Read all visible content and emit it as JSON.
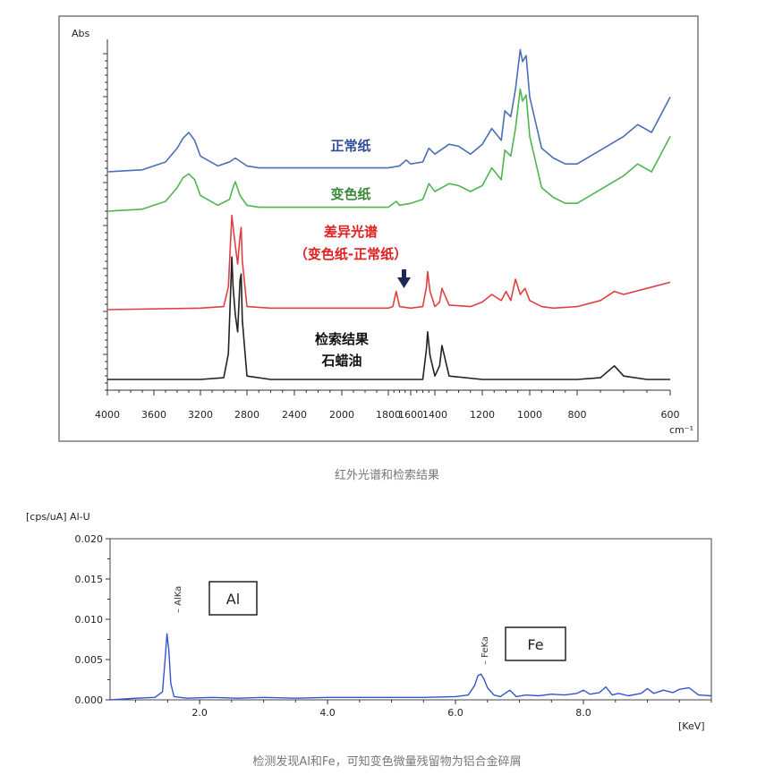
{
  "chart_data": [
    {
      "type": "line",
      "title": "",
      "ylabel": "Abs",
      "xlabel": "cm⁻¹",
      "xlim": [
        4000,
        600
      ],
      "x_ticks": [
        "4000",
        "3600",
        "3200",
        "2800",
        "2400",
        "2000",
        "1800",
        "1600",
        "1400",
        "1200",
        "1000",
        "800",
        "600"
      ],
      "x_ticks_note": "axis is non-linear: 4000-2000 compressed, 2000-600 expanded",
      "grid": false,
      "caption": "红外光谱和检索结果",
      "series": [
        {
          "name": "正常纸",
          "color": "#4a6fb5",
          "x": [
            4000,
            3700,
            3500,
            3400,
            3350,
            3300,
            3250,
            3200,
            3050,
            2950,
            2900,
            2850,
            2800,
            2700,
            2400,
            2000,
            1800,
            1700,
            1640,
            1600,
            1500,
            1450,
            1400,
            1340,
            1300,
            1250,
            1200,
            1160,
            1120,
            1105,
            1080,
            1060,
            1040,
            1030,
            1015,
            1000,
            950,
            900,
            850,
            800,
            700,
            670,
            640,
            600
          ],
          "y": [
            0.0,
            0.01,
            0.05,
            0.12,
            0.17,
            0.2,
            0.16,
            0.08,
            0.03,
            0.05,
            0.07,
            0.05,
            0.03,
            0.02,
            0.02,
            0.02,
            0.02,
            0.03,
            0.06,
            0.04,
            0.05,
            0.12,
            0.09,
            0.14,
            0.13,
            0.09,
            0.14,
            0.22,
            0.16,
            0.31,
            0.28,
            0.42,
            0.62,
            0.56,
            0.59,
            0.38,
            0.12,
            0.07,
            0.04,
            0.04,
            0.18,
            0.24,
            0.2,
            0.38
          ]
        },
        {
          "name": "变色纸",
          "color": "#4fb54f",
          "x": [
            4000,
            3700,
            3500,
            3400,
            3350,
            3300,
            3250,
            3200,
            3050,
            2950,
            2920,
            2900,
            2860,
            2800,
            2700,
            2400,
            2000,
            1800,
            1730,
            1700,
            1600,
            1500,
            1450,
            1400,
            1340,
            1300,
            1250,
            1200,
            1160,
            1120,
            1105,
            1080,
            1060,
            1040,
            1030,
            1015,
            1000,
            950,
            900,
            850,
            800,
            700,
            670,
            640,
            600
          ],
          "y": [
            0.0,
            0.01,
            0.05,
            0.12,
            0.17,
            0.19,
            0.16,
            0.08,
            0.03,
            0.06,
            0.12,
            0.15,
            0.08,
            0.03,
            0.02,
            0.02,
            0.02,
            0.02,
            0.05,
            0.03,
            0.04,
            0.06,
            0.14,
            0.1,
            0.14,
            0.13,
            0.1,
            0.13,
            0.22,
            0.16,
            0.31,
            0.28,
            0.42,
            0.62,
            0.56,
            0.59,
            0.38,
            0.12,
            0.07,
            0.04,
            0.04,
            0.18,
            0.24,
            0.2,
            0.38
          ]
        },
        {
          "name": "差异光谱（变色纸-正常纸）",
          "color": "#e04040",
          "x": [
            4000,
            3200,
            3000,
            2960,
            2930,
            2920,
            2900,
            2880,
            2860,
            2850,
            2840,
            2800,
            2600,
            2000,
            1800,
            1760,
            1730,
            1700,
            1600,
            1500,
            1470,
            1460,
            1440,
            1400,
            1380,
            1370,
            1340,
            1250,
            1200,
            1160,
            1120,
            1100,
            1080,
            1060,
            1040,
            1020,
            1000,
            950,
            900,
            800,
            750,
            720,
            700,
            650,
            600
          ],
          "y": [
            0.0,
            0.01,
            0.02,
            0.15,
            0.62,
            0.55,
            0.42,
            0.3,
            0.48,
            0.54,
            0.32,
            0.02,
            0.01,
            0.01,
            0.01,
            0.02,
            0.12,
            0.02,
            0.01,
            0.02,
            0.15,
            0.25,
            0.12,
            0.02,
            0.05,
            0.14,
            0.03,
            0.02,
            0.05,
            0.1,
            0.06,
            0.12,
            0.06,
            0.2,
            0.1,
            0.14,
            0.06,
            0.02,
            0.01,
            0.02,
            0.06,
            0.12,
            0.1,
            0.14,
            0.18
          ]
        },
        {
          "name": "检索结果 石蜡油",
          "color": "#222222",
          "x": [
            4000,
            3200,
            3000,
            2960,
            2930,
            2920,
            2900,
            2880,
            2860,
            2850,
            2840,
            2800,
            2600,
            2000,
            1800,
            1500,
            1470,
            1460,
            1440,
            1400,
            1380,
            1370,
            1340,
            1200,
            1000,
            800,
            750,
            720,
            700,
            650,
            600
          ],
          "y": [
            0.0,
            0.0,
            0.01,
            0.15,
            0.72,
            0.55,
            0.38,
            0.28,
            0.58,
            0.62,
            0.35,
            0.02,
            0.0,
            0.0,
            0.0,
            0.0,
            0.18,
            0.28,
            0.14,
            0.02,
            0.08,
            0.2,
            0.02,
            0.0,
            0.0,
            0.0,
            0.01,
            0.08,
            0.02,
            0.0,
            0.0
          ]
        }
      ],
      "annotations": [
        {
          "text": "正常纸",
          "color": "#2f4f9a"
        },
        {
          "text": "变色纸",
          "color": "#3a8a3a"
        },
        {
          "text": "差异光谱",
          "color": "#e02020"
        },
        {
          "text": "（变色纸-正常纸）",
          "color": "#e02020"
        },
        {
          "text": "检索结果",
          "color": "#111111"
        },
        {
          "text": "石蜡油",
          "color": "#111111"
        }
      ],
      "arrow_marker_x": 1730
    },
    {
      "type": "line",
      "title": "",
      "ylabel": "[cps/uA] Al-U",
      "xlabel": "[KeV]",
      "xlim": [
        0.6,
        10.0
      ],
      "ylim": [
        0.0,
        0.02
      ],
      "x_ticks": [
        "2.0",
        "4.0",
        "6.0",
        "8.0"
      ],
      "x_tick_values": [
        2.0,
        4.0,
        6.0,
        8.0
      ],
      "y_ticks": [
        "0.000",
        "0.005",
        "0.010",
        "0.015",
        "0.020"
      ],
      "y_tick_values": [
        0.0,
        0.005,
        0.01,
        0.015,
        0.02
      ],
      "grid": false,
      "caption": "检测发现Al和Fe，可知变色微量残留物为铝合金碎屑",
      "series": [
        {
          "name": "",
          "color": "#3355cc",
          "x": [
            0.6,
            1.0,
            1.3,
            1.42,
            1.46,
            1.49,
            1.52,
            1.55,
            1.6,
            1.8,
            2.2,
            2.6,
            3.0,
            3.5,
            4.0,
            4.5,
            5.0,
            5.5,
            6.0,
            6.2,
            6.3,
            6.35,
            6.4,
            6.45,
            6.5,
            6.6,
            6.7,
            6.85,
            6.95,
            7.1,
            7.3,
            7.5,
            7.7,
            7.9,
            8.0,
            8.1,
            8.25,
            8.35,
            8.45,
            8.55,
            8.7,
            8.9,
            9.0,
            9.1,
            9.25,
            9.4,
            9.5,
            9.65,
            9.8,
            10.0
          ],
          "y": [
            0.0,
            0.0002,
            0.0003,
            0.001,
            0.005,
            0.0082,
            0.006,
            0.002,
            0.0004,
            0.0002,
            0.0003,
            0.0002,
            0.0003,
            0.0002,
            0.0003,
            0.0003,
            0.0003,
            0.0003,
            0.0004,
            0.0006,
            0.0018,
            0.003,
            0.0032,
            0.0025,
            0.0015,
            0.0006,
            0.0004,
            0.0012,
            0.0004,
            0.0006,
            0.0005,
            0.0007,
            0.0006,
            0.0008,
            0.0012,
            0.0007,
            0.0009,
            0.0016,
            0.0006,
            0.0008,
            0.0005,
            0.0008,
            0.0014,
            0.0008,
            0.0012,
            0.0009,
            0.0013,
            0.0015,
            0.0006,
            0.0005
          ]
        }
      ],
      "annotations": [
        {
          "text": "Al",
          "boxed": true
        },
        {
          "text": "Fe",
          "boxed": true
        },
        {
          "text": "– AlKa",
          "at_x": 1.49
        },
        {
          "text": "– FeKa",
          "at_x": 6.4
        }
      ]
    }
  ]
}
